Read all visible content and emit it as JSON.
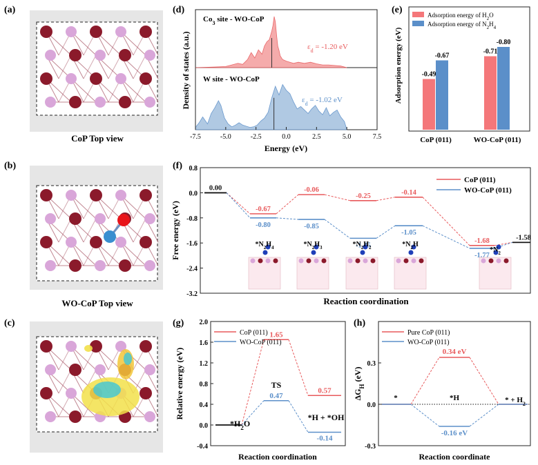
{
  "colors": {
    "red": "#e8595b",
    "blue": "#5b8fc9",
    "red_fill": "#f4a3a3",
    "blue_fill": "#a8c4e0",
    "atom_co": "#8b1a2b",
    "atom_p": "#d9a6d9",
    "atom_w": "#3a8fd0",
    "atom_o": "#e8141a",
    "bond": "#a85565"
  },
  "panels": {
    "a": {
      "label": "(a)",
      "caption": "CoP Top view"
    },
    "b": {
      "label": "(b)",
      "caption": "WO-CoP Top view"
    },
    "c": {
      "label": "(c)"
    }
  },
  "chart_data": [
    {
      "id": "d",
      "label": "(d)",
      "type": "area",
      "ylabel": "Density of states (a.u.)",
      "xlabel": "Energy (eV)",
      "xlim": [
        -7.5,
        7.5
      ],
      "xticks": [
        "-7.5",
        "-5.0",
        "-2.5",
        "0.0",
        "2.5",
        "5.0",
        "7.5"
      ],
      "series": [
        {
          "name": "Co3 site - WO-CoP",
          "name_base": "Co",
          "name_sub": "3",
          "name_rest": " site - WO-CoP",
          "center_text": "ε",
          "center_sub": "d",
          "center_rest": " = -1.20 eV",
          "center": -1.2,
          "x": [
            -7.5,
            -6,
            -5,
            -4.5,
            -4,
            -3.6,
            -3.2,
            -2.9,
            -2.6,
            -2.3,
            -2.0,
            -1.8,
            -1.6,
            -1.4,
            -1.2,
            -1.1,
            -1.0,
            -0.9,
            -0.8,
            -0.7,
            -0.6,
            -0.5,
            -0.3,
            0,
            0.3,
            0.6,
            1.0,
            1.5,
            2.0,
            2.5,
            3.0,
            3.5,
            4.0,
            4.5,
            5.0
          ],
          "y": [
            0,
            0.01,
            0.02,
            0.05,
            0.08,
            0.06,
            0.15,
            0.28,
            0.18,
            0.33,
            0.25,
            0.4,
            0.48,
            0.52,
            0.68,
            0.78,
            0.95,
            0.85,
            0.6,
            0.4,
            0.32,
            0.22,
            0.15,
            0.12,
            0.1,
            0.08,
            0.1,
            0.08,
            0.1,
            0.07,
            0.05,
            0.05,
            0.04,
            0.03,
            0
          ]
        },
        {
          "name": "W site - WO-CoP",
          "center_text": "ε",
          "center_sub": "d",
          "center_rest": " = -1.02 eV",
          "center": -1.02,
          "x": [
            -7.5,
            -7.2,
            -6.9,
            -6.5,
            -6.2,
            -5.9,
            -5.6,
            -5.4,
            -5.1,
            -4.8,
            -4.5,
            -4.2,
            -3.9,
            -3.6,
            -3.3,
            -3.0,
            -2.7,
            -2.4,
            -2.1,
            -1.8,
            -1.5,
            -1.2,
            -0.9,
            -0.6,
            -0.3,
            0,
            0.3,
            0.6,
            0.9,
            1.2,
            1.5,
            1.8,
            2.1,
            2.4,
            2.7,
            3.0,
            3.3,
            3.6,
            3.9,
            4.2,
            4.5,
            4.8,
            5.0
          ],
          "y": [
            0.04,
            0.12,
            0.22,
            0.1,
            0.28,
            0.38,
            0.5,
            0.42,
            0.2,
            0.1,
            0.05,
            0.08,
            0.12,
            0.08,
            0.06,
            0.04,
            0.05,
            0.08,
            0.15,
            0.2,
            0.3,
            0.55,
            0.75,
            0.6,
            0.78,
            0.68,
            0.62,
            0.48,
            0.36,
            0.4,
            0.34,
            0.28,
            0.36,
            0.42,
            0.32,
            0.26,
            0.38,
            0.24,
            0.3,
            0.34,
            0.22,
            0.14,
            0
          ]
        }
      ]
    },
    {
      "id": "e",
      "label": "(e)",
      "type": "bar",
      "ylabel": "Adsorption energy (eV)",
      "categories": [
        "CoP (011)",
        "WO-CoP (011)"
      ],
      "series": [
        {
          "name": "Adsorption energy of H2O",
          "base": "Adsorption energy of H",
          "sub": "2",
          "rest": "O",
          "values": [
            -0.49,
            -0.71
          ],
          "labels": [
            "-0.49",
            "-0.71"
          ]
        },
        {
          "name": "Adsorption energy of N2H4",
          "base": "Adsorption energy of N",
          "sub": "2",
          "rest": "H",
          "sub2": "4",
          "values": [
            -0.67,
            -0.8
          ],
          "labels": [
            "-0.67",
            "-0.80"
          ]
        }
      ]
    },
    {
      "id": "f",
      "label": "(f)",
      "type": "line",
      "ylabel": "Free energy (eV)",
      "xlabel": "Reaction coordination",
      "ylim": [
        -3.2,
        0.8
      ],
      "yticks": [
        "0.8",
        "0.0",
        "-0.8",
        "-1.6",
        "-2.4",
        "-3.2"
      ],
      "series": [
        {
          "name": "CoP (011)",
          "values": [
            0.0,
            -0.67,
            -0.06,
            -0.25,
            -0.14,
            -1.68,
            -1.58
          ],
          "labels": [
            "0.00",
            "-0.67",
            "-0.06",
            "-0.25",
            "-0.14",
            "-1.68",
            "-1.58"
          ]
        },
        {
          "name": "WO-CoP (011)",
          "values": [
            0.0,
            -0.8,
            -0.85,
            -1.45,
            -1.05,
            -1.77,
            -1.58
          ],
          "labels": [
            "",
            "-0.80",
            "-0.85",
            "-1.45",
            "-1.05",
            "-1.77",
            ""
          ]
        }
      ],
      "intermediates": [
        {
          "base": "*N",
          "sub": "2",
          "rest": "H",
          "sub2": "4"
        },
        {
          "base": "*N",
          "sub": "2",
          "rest": "H",
          "sub2": "3"
        },
        {
          "base": "*N",
          "sub": "2",
          "rest": "H",
          "sub2": "2"
        },
        {
          "base": "*N",
          "sub": "2",
          "rest": "H",
          "sub2": ""
        },
        {
          "base": "*N",
          "sub": "2",
          "rest": "",
          "sub2": ""
        }
      ]
    },
    {
      "id": "g",
      "label": "(g)",
      "type": "line",
      "ylabel": "Relative energy (eV)",
      "xlabel": "Reaction coordination",
      "ylim": [
        -0.4,
        2.0
      ],
      "yticks": [
        "2.0",
        "1.6",
        "1.2",
        "0.8",
        "0.4",
        "0.0",
        "-0.4"
      ],
      "series": [
        {
          "name": "CoP (011)",
          "values": [
            0.0,
            1.65,
            0.57
          ],
          "labels": [
            "",
            "1.65",
            "0.57"
          ]
        },
        {
          "name": "WO-CoP (011)",
          "values": [
            0.0,
            0.47,
            -0.14
          ],
          "labels": [
            "",
            "0.47",
            "-0.14"
          ]
        }
      ],
      "annotations": {
        "start": "*H",
        "start_sub": "2",
        "start_rest": "O",
        "ts": "TS",
        "end": "*H + *OH"
      }
    },
    {
      "id": "h",
      "label": "(h)",
      "type": "line",
      "ylabel": "ΔG",
      "ylabel_sub": "H",
      "ylabel_rest": " (eV)",
      "xlabel": "Reaction coordinate",
      "ylim": [
        -0.3,
        0.6
      ],
      "yticks": [
        "0.3",
        "0.0",
        "-0.3"
      ],
      "series": [
        {
          "name": "Pure CoP (011)",
          "values": [
            0.0,
            0.34,
            0.0
          ],
          "labels": [
            "",
            "0.34 eV",
            ""
          ]
        },
        {
          "name": "WO-CoP (011)",
          "values": [
            0.0,
            -0.16,
            0.0
          ],
          "labels": [
            "",
            "-0.16 eV",
            ""
          ]
        }
      ],
      "annotations": {
        "s1": "*",
        "s2": "*H",
        "s3": "* + H",
        "s3_sub": "2"
      }
    }
  ]
}
